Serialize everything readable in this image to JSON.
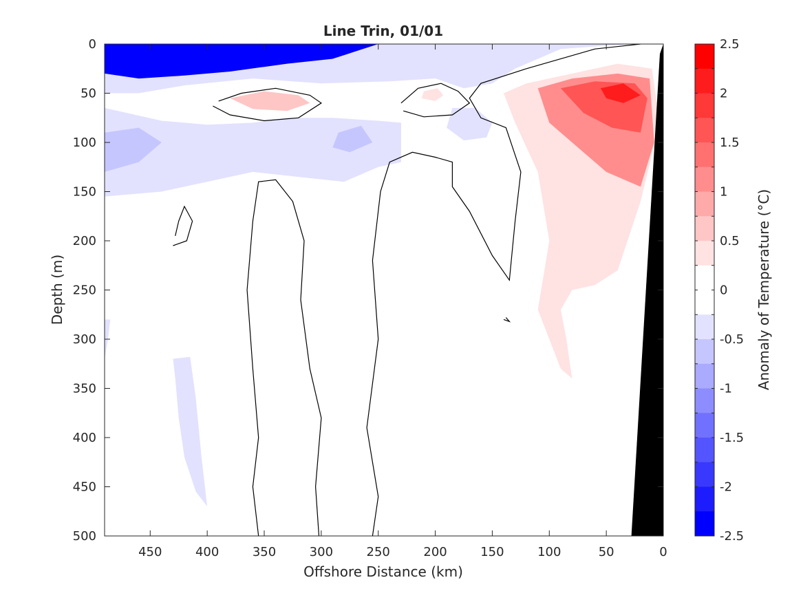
{
  "chart_data": {
    "type": "heatmap",
    "subtype": "filled contour section",
    "title": "Line Trin, 01/01",
    "xlabel": "Offshore Distance (km)",
    "ylabel": "Depth (m)",
    "colorbar_label": "Anomaly of Temperature (°C)",
    "x_ticks": [
      450,
      400,
      350,
      300,
      250,
      200,
      150,
      100,
      50,
      0
    ],
    "y_ticks": [
      0,
      50,
      100,
      150,
      200,
      250,
      300,
      350,
      400,
      450,
      500
    ],
    "colorbar_ticks": [
      2.5,
      2,
      1.5,
      1,
      0.5,
      0,
      -0.5,
      -1,
      -1.5,
      -2,
      -2.5
    ],
    "xlim": [
      490,
      0
    ],
    "ylim": [
      0,
      500
    ],
    "x_reversed": true,
    "y_reversed": true,
    "clim": [
      -2.5,
      2.5
    ],
    "colorbar_levels": [
      {
        "from": 2.25,
        "to": 2.5,
        "color": "#ff0000"
      },
      {
        "from": 2.0,
        "to": 2.25,
        "color": "#ff1c1c"
      },
      {
        "from": 1.75,
        "to": 2.0,
        "color": "#ff3838"
      },
      {
        "from": 1.5,
        "to": 1.75,
        "color": "#ff5555"
      },
      {
        "from": 1.25,
        "to": 1.5,
        "color": "#ff7171"
      },
      {
        "from": 1.0,
        "to": 1.25,
        "color": "#ff8d8d"
      },
      {
        "from": 0.75,
        "to": 1.0,
        "color": "#ffaaaa"
      },
      {
        "from": 0.5,
        "to": 0.75,
        "color": "#ffc6c6"
      },
      {
        "from": 0.25,
        "to": 0.5,
        "color": "#ffe2e2"
      },
      {
        "from": 0.0,
        "to": 0.25,
        "color": "#ffffff"
      },
      {
        "from": -0.25,
        "to": 0.0,
        "color": "#ffffff"
      },
      {
        "from": -0.5,
        "to": -0.25,
        "color": "#e2e2ff"
      },
      {
        "from": -0.75,
        "to": -0.5,
        "color": "#c6c6ff"
      },
      {
        "from": -1.0,
        "to": -0.75,
        "color": "#aaaaff"
      },
      {
        "from": -1.25,
        "to": -1.0,
        "color": "#8d8dff"
      },
      {
        "from": -1.5,
        "to": -1.25,
        "color": "#7171ff"
      },
      {
        "from": -1.75,
        "to": -1.5,
        "color": "#5555ff"
      },
      {
        "from": -2.0,
        "to": -1.75,
        "color": "#3838ff"
      },
      {
        "from": -2.25,
        "to": -2.0,
        "color": "#1c1cff"
      },
      {
        "from": -2.5,
        "to": -2.25,
        "color": "#0000ff"
      }
    ],
    "regions": [
      {
        "name": "surface-cold-layer",
        "anomaly": -0.4,
        "points": [
          [
            490,
            0
          ],
          [
            300,
            0
          ],
          [
            200,
            0
          ],
          [
            120,
            0
          ],
          [
            30,
            0
          ],
          [
            90,
            5
          ],
          [
            130,
            25
          ],
          [
            150,
            40
          ],
          [
            175,
            45
          ],
          [
            200,
            35
          ],
          [
            240,
            38
          ],
          [
            300,
            40
          ],
          [
            360,
            35
          ],
          [
            420,
            42
          ],
          [
            460,
            50
          ],
          [
            490,
            50
          ]
        ]
      },
      {
        "name": "surface-cold-core",
        "anomaly": -2.3,
        "points": [
          [
            490,
            0
          ],
          [
            250,
            0
          ],
          [
            290,
            15
          ],
          [
            330,
            20
          ],
          [
            380,
            28
          ],
          [
            420,
            32
          ],
          [
            460,
            35
          ],
          [
            490,
            30
          ]
        ]
      },
      {
        "name": "cold-band-100m",
        "anomaly": -0.4,
        "points": [
          [
            490,
            65
          ],
          [
            440,
            78
          ],
          [
            400,
            82
          ],
          [
            360,
            80
          ],
          [
            330,
            75
          ],
          [
            290,
            75
          ],
          [
            250,
            78
          ],
          [
            230,
            80
          ],
          [
            230,
            120
          ],
          [
            250,
            125
          ],
          [
            280,
            140
          ],
          [
            320,
            135
          ],
          [
            360,
            130
          ],
          [
            400,
            140
          ],
          [
            440,
            150
          ],
          [
            490,
            155
          ]
        ]
      },
      {
        "name": "cold-blob-west-100m",
        "anomaly": -0.7,
        "points": [
          [
            490,
            90
          ],
          [
            460,
            85
          ],
          [
            440,
            100
          ],
          [
            460,
            120
          ],
          [
            490,
            130
          ]
        ]
      },
      {
        "name": "cold-blob-270km",
        "anomaly": -0.7,
        "points": [
          [
            285,
            90
          ],
          [
            265,
            83
          ],
          [
            255,
            100
          ],
          [
            275,
            110
          ],
          [
            290,
            105
          ]
        ]
      },
      {
        "name": "cold-blob-180km",
        "anomaly": -0.4,
        "points": [
          [
            185,
            65
          ],
          [
            165,
            65
          ],
          [
            150,
            80
          ],
          [
            155,
            95
          ],
          [
            175,
            98
          ],
          [
            190,
            85
          ]
        ]
      },
      {
        "name": "cold-patch-deep-west",
        "anomaly": -0.4,
        "points": [
          [
            430,
            320
          ],
          [
            415,
            318
          ],
          [
            410,
            360
          ],
          [
            405,
            420
          ],
          [
            400,
            470
          ],
          [
            410,
            455
          ],
          [
            420,
            420
          ],
          [
            425,
            380
          ],
          [
            428,
            340
          ]
        ]
      },
      {
        "name": "cold-patch-edge-280m",
        "anomaly": -0.4,
        "points": [
          [
            490,
            280
          ],
          [
            485,
            280
          ],
          [
            487,
            300
          ],
          [
            490,
            320
          ]
        ]
      },
      {
        "name": "warm-coastal-plume",
        "anomaly": 0.4,
        "points": [
          [
            120,
            40
          ],
          [
            80,
            30
          ],
          [
            40,
            20
          ],
          [
            10,
            25
          ],
          [
            3,
            80
          ],
          [
            20,
            160
          ],
          [
            40,
            230
          ],
          [
            60,
            245
          ],
          [
            80,
            250
          ],
          [
            90,
            270
          ],
          [
            85,
            300
          ],
          [
            80,
            340
          ],
          [
            90,
            330
          ],
          [
            100,
            300
          ],
          [
            110,
            270
          ],
          [
            100,
            200
          ],
          [
            110,
            130
          ],
          [
            130,
            80
          ],
          [
            140,
            50
          ]
        ]
      },
      {
        "name": "warm-core-1.0",
        "anomaly": 1.0,
        "points": [
          [
            110,
            45
          ],
          [
            80,
            35
          ],
          [
            40,
            30
          ],
          [
            12,
            35
          ],
          [
            8,
            100
          ],
          [
            20,
            145
          ],
          [
            50,
            130
          ],
          [
            80,
            100
          ],
          [
            100,
            80
          ]
        ]
      },
      {
        "name": "warm-core-1.5",
        "anomaly": 1.6,
        "points": [
          [
            90,
            45
          ],
          [
            60,
            38
          ],
          [
            25,
            40
          ],
          [
            14,
            55
          ],
          [
            20,
            90
          ],
          [
            45,
            85
          ],
          [
            70,
            70
          ]
        ]
      },
      {
        "name": "warm-core-2.0",
        "anomaly": 2.2,
        "points": [
          [
            55,
            45
          ],
          [
            35,
            40
          ],
          [
            20,
            52
          ],
          [
            35,
            60
          ],
          [
            50,
            55
          ]
        ]
      },
      {
        "name": "warm-blob-350km",
        "anomaly": 0.5,
        "points": [
          [
            380,
            55
          ],
          [
            350,
            48
          ],
          [
            320,
            52
          ],
          [
            310,
            60
          ],
          [
            330,
            68
          ],
          [
            360,
            66
          ]
        ]
      },
      {
        "name": "warm-blob-205km",
        "anomaly": 0.3,
        "points": [
          [
            210,
            48
          ],
          [
            198,
            45
          ],
          [
            193,
            52
          ],
          [
            200,
            58
          ],
          [
            212,
            55
          ]
        ]
      }
    ],
    "contours": [
      {
        "name": "contour-a",
        "points": [
          [
            390,
            58
          ],
          [
            370,
            50
          ],
          [
            340,
            45
          ],
          [
            310,
            52
          ],
          [
            300,
            60
          ],
          [
            320,
            75
          ],
          [
            350,
            78
          ],
          [
            380,
            72
          ],
          [
            395,
            63
          ]
        ]
      },
      {
        "name": "contour-b",
        "points": [
          [
            230,
            60
          ],
          [
            215,
            45
          ],
          [
            195,
            40
          ],
          [
            180,
            48
          ],
          [
            170,
            60
          ],
          [
            185,
            72
          ],
          [
            210,
            74
          ],
          [
            228,
            68
          ]
        ]
      },
      {
        "name": "contour-c",
        "points": [
          [
            20,
            0
          ],
          [
            60,
            5
          ],
          [
            120,
            25
          ],
          [
            160,
            40
          ],
          [
            170,
            55
          ],
          [
            160,
            75
          ],
          [
            138,
            85
          ],
          [
            125,
            130
          ],
          [
            130,
            180
          ],
          [
            135,
            240
          ],
          [
            150,
            215
          ],
          [
            170,
            170
          ],
          [
            185,
            145
          ],
          [
            185,
            120
          ],
          [
            200,
            115
          ],
          [
            220,
            110
          ],
          [
            240,
            120
          ],
          [
            248,
            150
          ],
          [
            255,
            220
          ],
          [
            250,
            300
          ],
          [
            260,
            390
          ],
          [
            250,
            460
          ],
          [
            255,
            500
          ]
        ]
      },
      {
        "name": "contour-d",
        "points": [
          [
            355,
            500
          ],
          [
            360,
            450
          ],
          [
            355,
            400
          ],
          [
            360,
            330
          ],
          [
            365,
            250
          ],
          [
            360,
            180
          ],
          [
            355,
            140
          ],
          [
            340,
            138
          ],
          [
            325,
            160
          ],
          [
            315,
            200
          ],
          [
            318,
            260
          ],
          [
            310,
            330
          ],
          [
            300,
            380
          ],
          [
            305,
            450
          ],
          [
            302,
            500
          ]
        ]
      },
      {
        "name": "contour-e",
        "points": [
          [
            430,
            205
          ],
          [
            418,
            200
          ],
          [
            413,
            180
          ],
          [
            420,
            165
          ],
          [
            425,
            180
          ],
          [
            428,
            195
          ]
        ]
      },
      {
        "name": "contour-f",
        "points": [
          [
            140,
            280
          ],
          [
            135,
            282
          ],
          [
            138,
            278
          ]
        ]
      }
    ],
    "bathymetry": {
      "name": "seafloor",
      "color": "#000000",
      "points": [
        [
          0,
          0
        ],
        [
          0,
          500
        ],
        [
          28,
          500
        ],
        [
          3,
          10
        ]
      ]
    }
  }
}
